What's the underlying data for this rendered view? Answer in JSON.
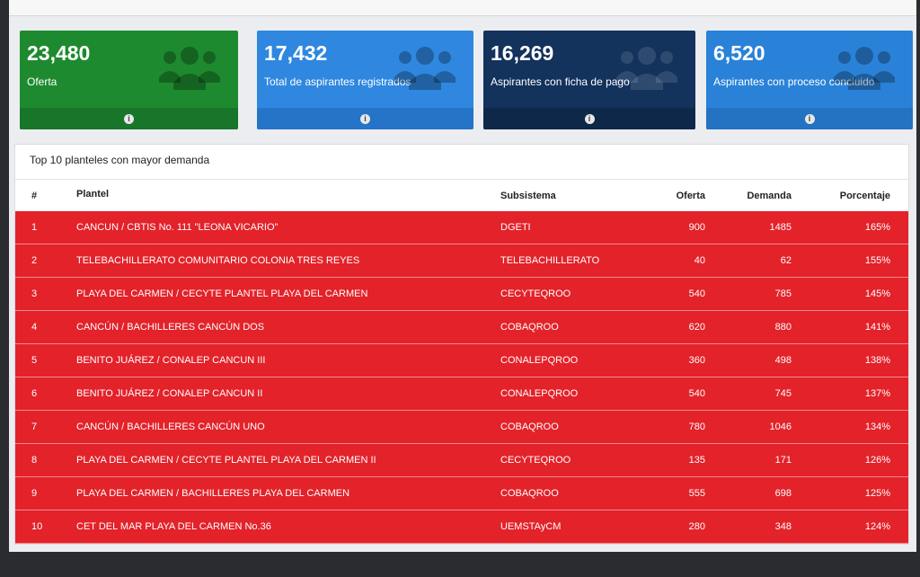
{
  "cards": [
    {
      "value": "23,480",
      "label": "Oferta",
      "color": "#1e8a2f"
    },
    {
      "value": "17,432",
      "label": "Total de aspirantes registrados",
      "color": "#2f87e0"
    },
    {
      "value": "16,269",
      "label": "Aspirantes con ficha de pago",
      "color": "#13325c"
    },
    {
      "value": "6,520",
      "label": "Aspirantes con proceso concluido",
      "color": "#2a82d8"
    }
  ],
  "info_glyph": "i",
  "table": {
    "title": "Top 10 planteles con mayor demanda",
    "headers": {
      "num": "#",
      "plantel": "Plantel",
      "subsistema": "Subsistema",
      "oferta": "Oferta",
      "demanda": "Demanda",
      "porcentaje": "Porcentaje"
    },
    "rows": [
      {
        "num": "1",
        "plantel": "CANCUN / CBTIS No. 111 \"LEONA VICARIO\"",
        "subsistema": "DGETI",
        "oferta": "900",
        "demanda": "1485",
        "porcentaje": "165%"
      },
      {
        "num": "2",
        "plantel": "TELEBACHILLERATO COMUNITARIO COLONIA TRES REYES",
        "subsistema": "TELEBACHILLERATO",
        "oferta": "40",
        "demanda": "62",
        "porcentaje": "155%"
      },
      {
        "num": "3",
        "plantel": "PLAYA DEL CARMEN / CECYTE PLANTEL PLAYA DEL CARMEN",
        "subsistema": "CECYTEQROO",
        "oferta": "540",
        "demanda": "785",
        "porcentaje": "145%"
      },
      {
        "num": "4",
        "plantel": "CANCÚN / BACHILLERES CANCÚN DOS",
        "subsistema": "COBAQROO",
        "oferta": "620",
        "demanda": "880",
        "porcentaje": "141%"
      },
      {
        "num": "5",
        "plantel": "BENITO JUÁREZ / CONALEP CANCUN III",
        "subsistema": "CONALEPQROO",
        "oferta": "360",
        "demanda": "498",
        "porcentaje": "138%"
      },
      {
        "num": "6",
        "plantel": "BENITO JUÁREZ / CONALEP CANCUN II",
        "subsistema": "CONALEPQROO",
        "oferta": "540",
        "demanda": "745",
        "porcentaje": "137%"
      },
      {
        "num": "7",
        "plantel": "CANCÚN / BACHILLERES CANCÚN UNO",
        "subsistema": "COBAQROO",
        "oferta": "780",
        "demanda": "1046",
        "porcentaje": "134%"
      },
      {
        "num": "8",
        "plantel": "PLAYA DEL CARMEN / CECYTE PLANTEL PLAYA DEL CARMEN II",
        "subsistema": "CECYTEQROO",
        "oferta": "135",
        "demanda": "171",
        "porcentaje": "126%"
      },
      {
        "num": "9",
        "plantel": "PLAYA DEL CARMEN / BACHILLERES PLAYA DEL CARMEN",
        "subsistema": "COBAQROO",
        "oferta": "555",
        "demanda": "698",
        "porcentaje": "125%"
      },
      {
        "num": "10",
        "plantel": "CET DEL MAR PLAYA DEL CARMEN No.36",
        "subsistema": "UEMSTAyCM",
        "oferta": "280",
        "demanda": "348",
        "porcentaje": "124%"
      }
    ],
    "row_color": "#e3222a"
  }
}
